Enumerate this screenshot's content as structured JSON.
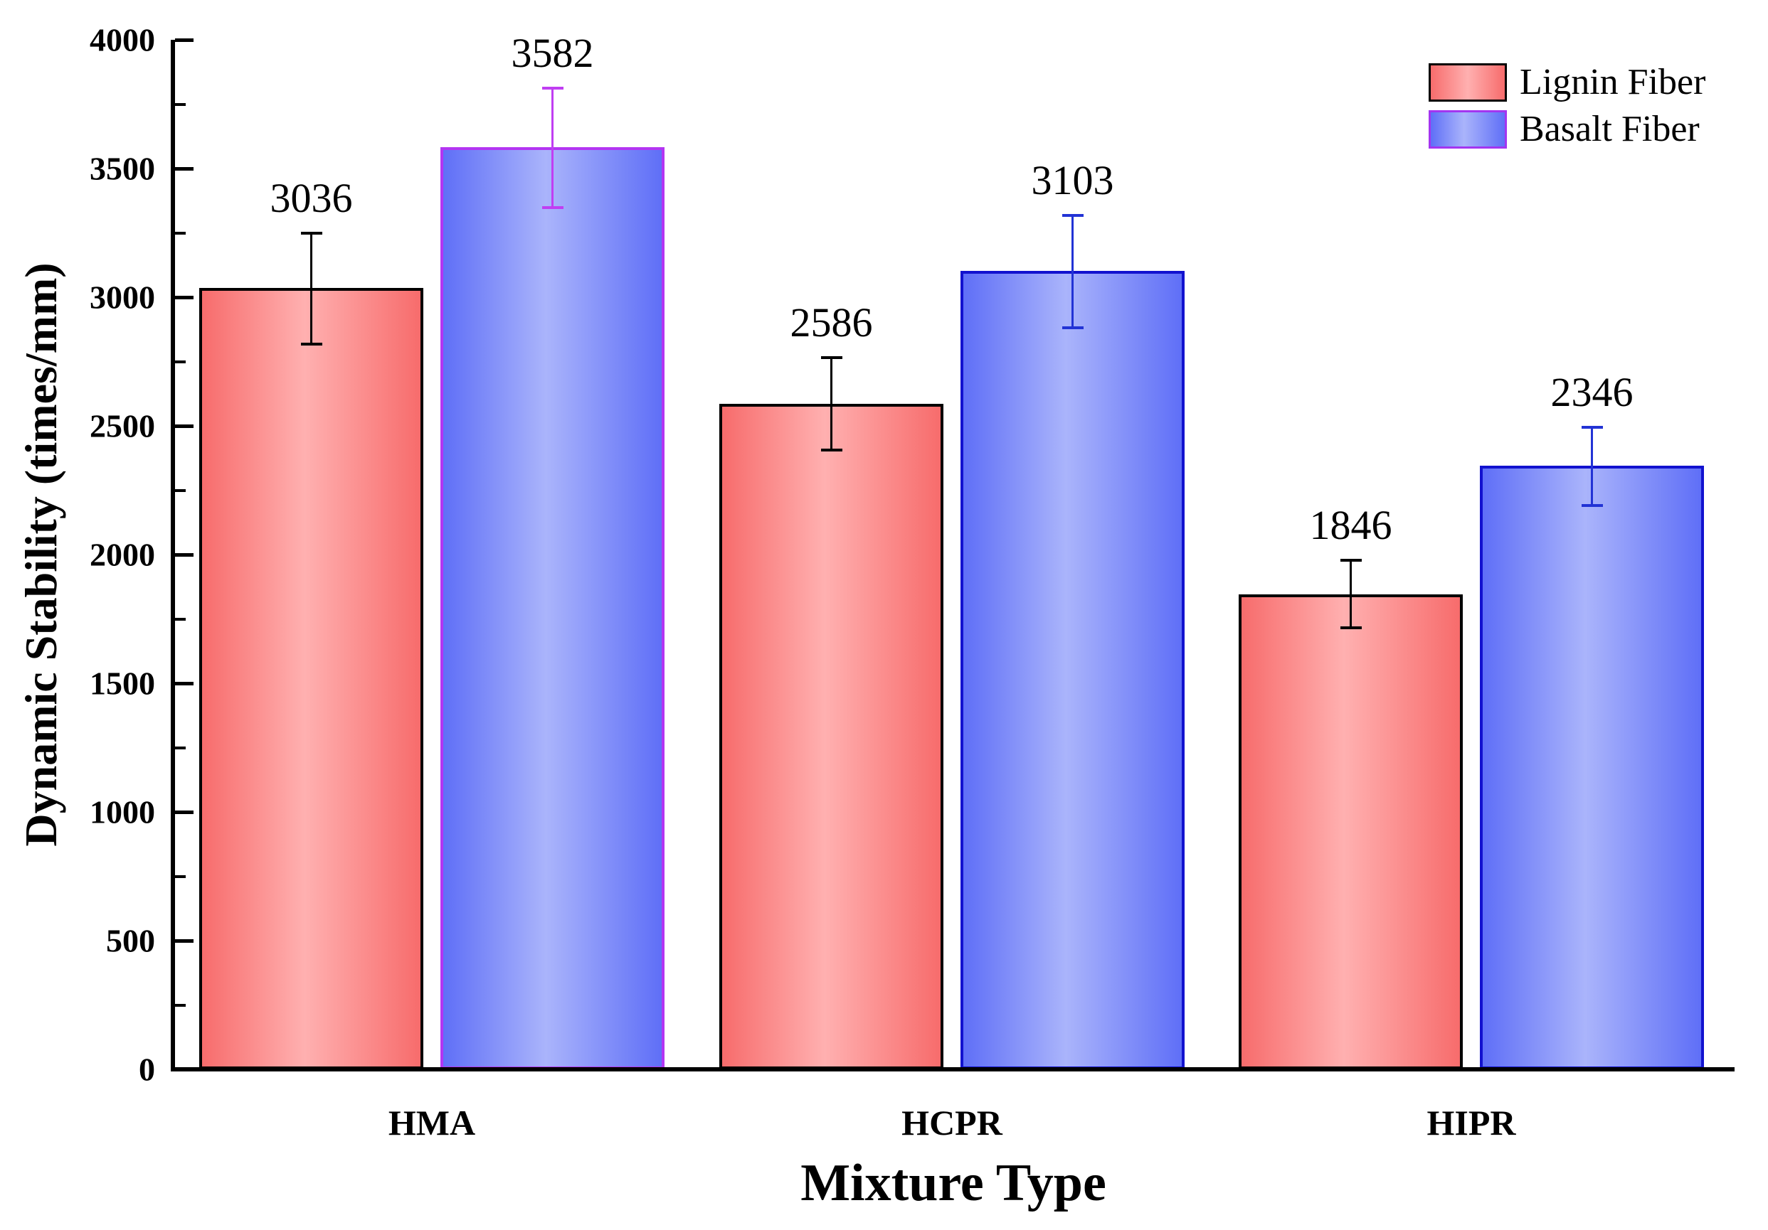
{
  "figure": {
    "background": "#ffffff"
  },
  "chart_data": {
    "type": "bar",
    "title": "",
    "xlabel": "Mixture Type",
    "ylabel": "Dynamic Stability (times/mm)",
    "categories": [
      "HMA",
      "HCPR",
      "HIPR"
    ],
    "series": [
      {
        "name": "Lignin Fiber",
        "values": [
          3036,
          2586,
          1846
        ],
        "err_plus": [
          213,
          179,
          132
        ],
        "err_minus": [
          218,
          180,
          130
        ],
        "fill_edge_color": "#f76c6c",
        "fill_center_color": "#ffb0b0",
        "border_colors": [
          "#000000",
          "#000000",
          "#000000"
        ],
        "err_colors": [
          "#000000",
          "#000000",
          "#000000"
        ]
      },
      {
        "name": "Basalt Fiber",
        "values": [
          3582,
          3103,
          2346
        ],
        "err_plus": [
          230,
          216,
          148
        ],
        "err_minus": [
          234,
          222,
          156
        ],
        "fill_edge_color": "#5f6ff7",
        "fill_center_color": "#aab4fb",
        "border_colors": [
          "#b335f2",
          "#1212cf",
          "#1212cf"
        ],
        "err_colors": [
          "#c03ef2",
          "#2233d5",
          "#2233d5"
        ]
      }
    ],
    "bar_value_labels": [
      [
        "3036",
        "2586",
        "1846"
      ],
      [
        "3582",
        "3103",
        "2346"
      ]
    ],
    "ylim": [
      0,
      4000
    ],
    "y_major_step": 500,
    "y_minor_step": 250,
    "y_tick_labels": [
      "0",
      "500",
      "1000",
      "1500",
      "2000",
      "2500",
      "3000",
      "3500",
      "4000"
    ],
    "grid": false,
    "legend_position": "top-right"
  },
  "legend": {
    "items": [
      {
        "label": "Lignin Fiber",
        "swatch": "red-gradient-black-border"
      },
      {
        "label": "Basalt Fiber",
        "swatch": "blue-gradient-purple-border"
      }
    ]
  }
}
